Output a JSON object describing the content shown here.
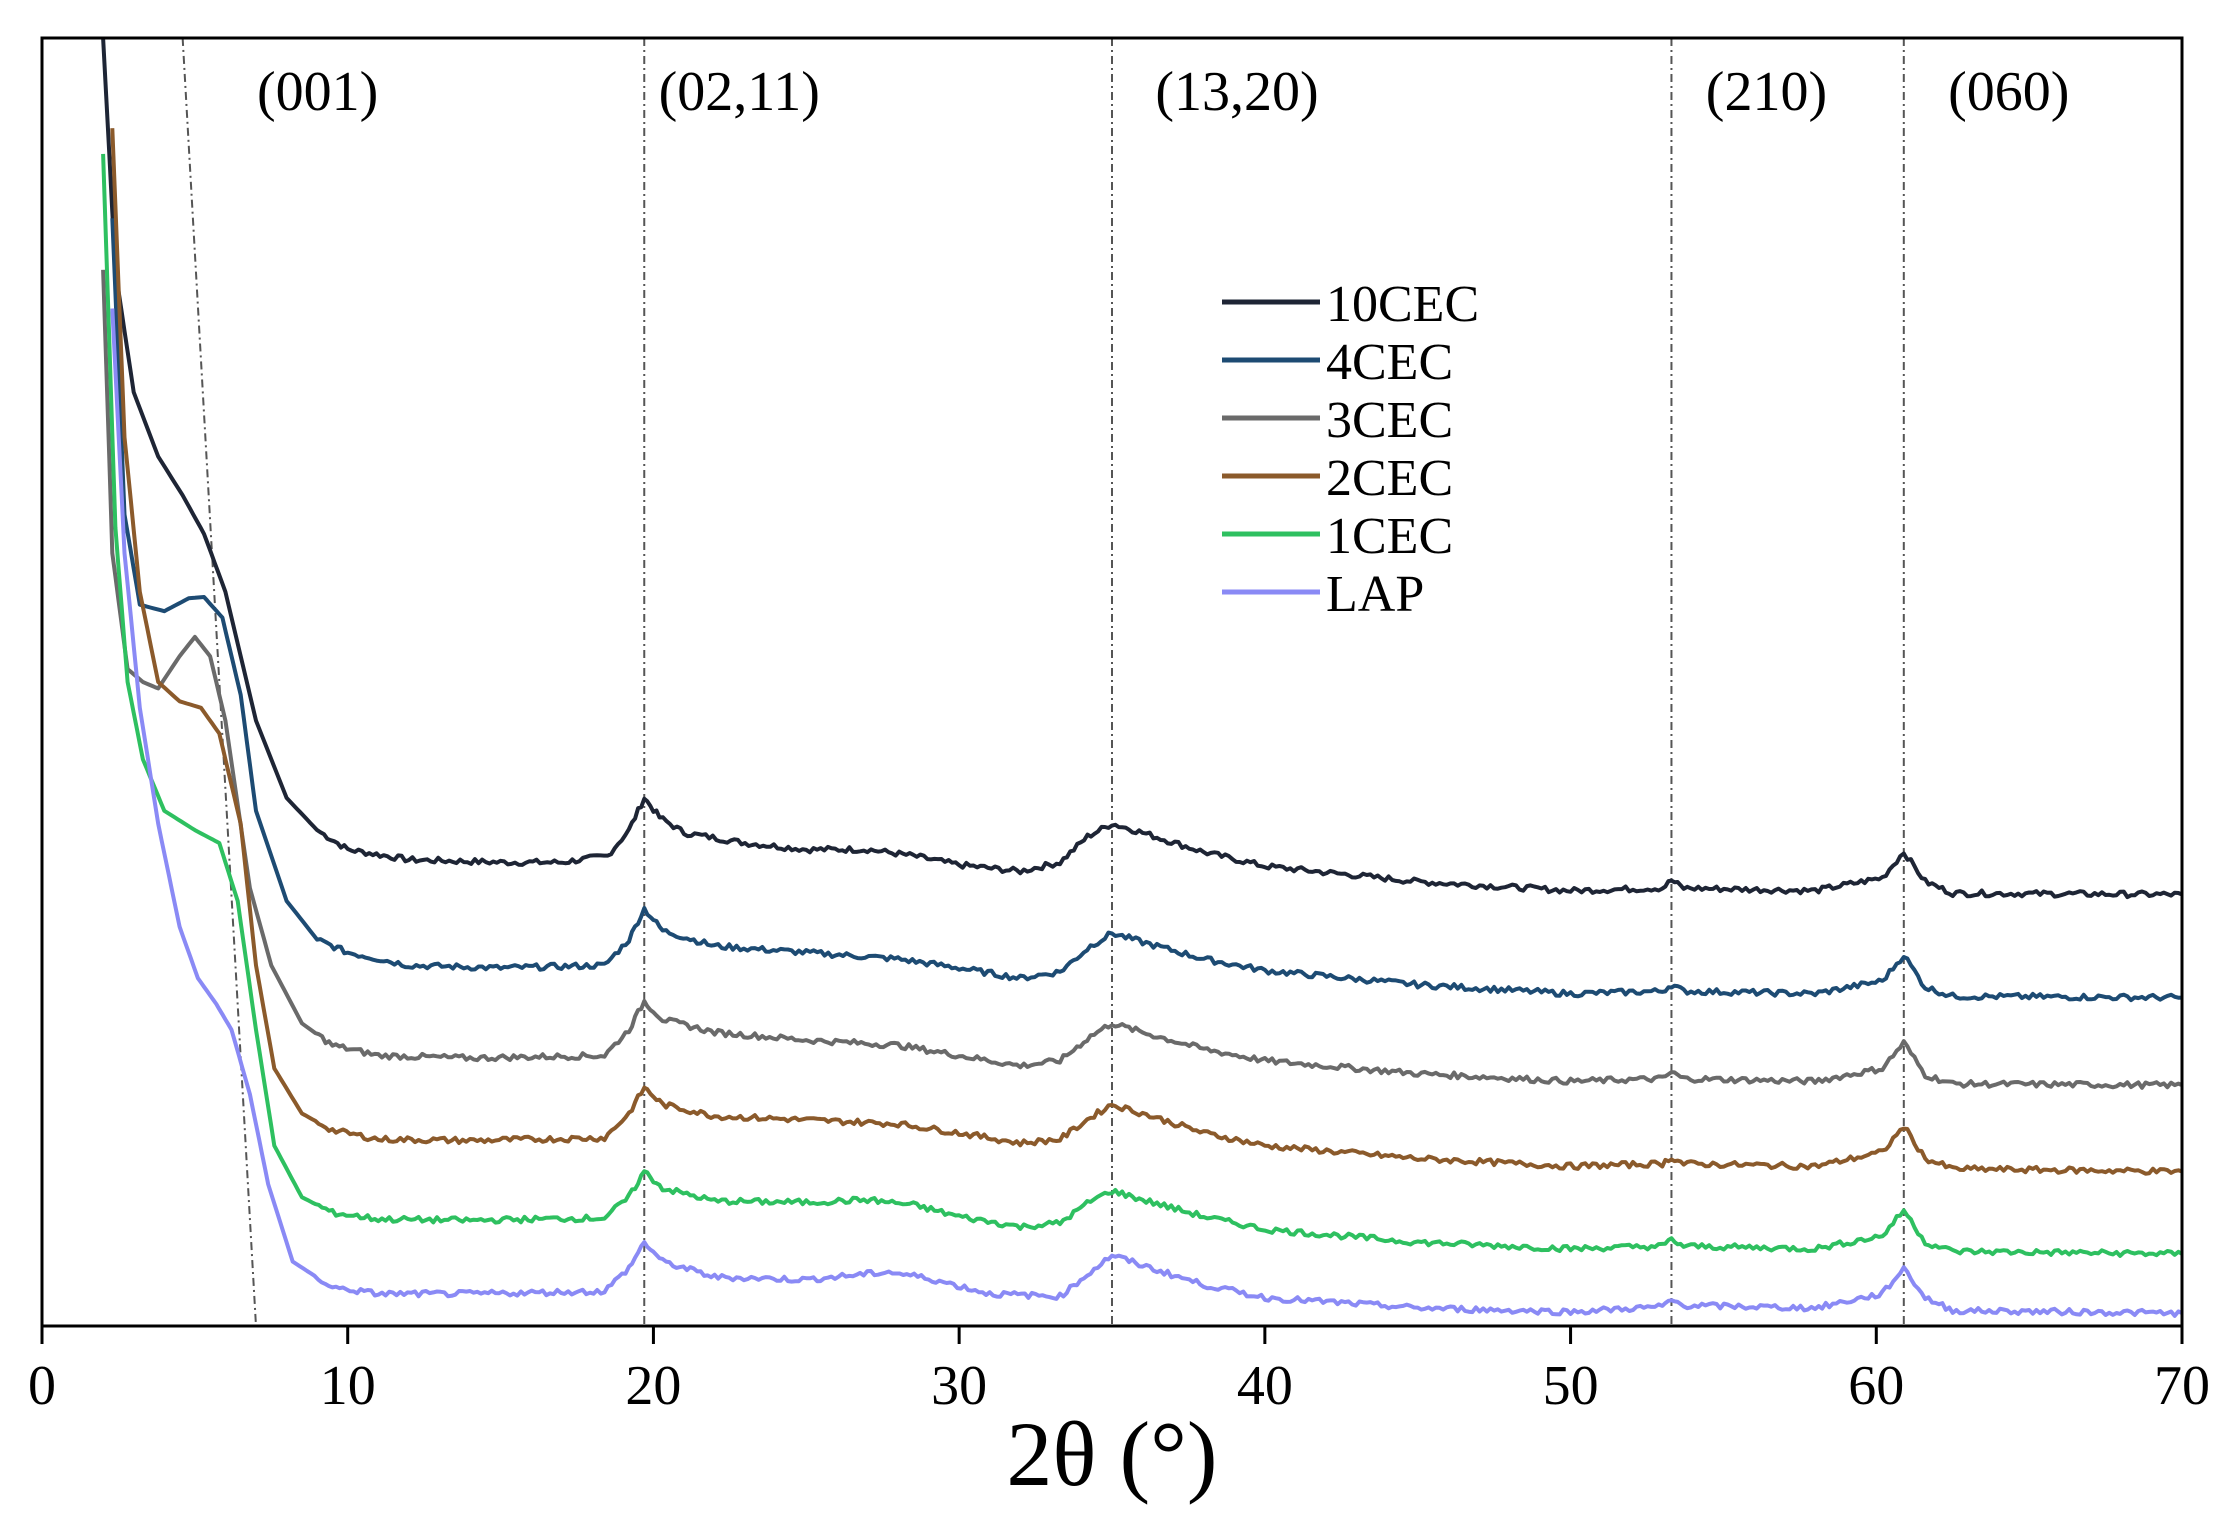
{
  "chart_data": {
    "type": "line",
    "title": "",
    "xlabel": "2θ (°)",
    "ylabel": "",
    "xlim": [
      0,
      70
    ],
    "ylim": [
      0,
      1
    ],
    "yticks_visible": false,
    "xticks": [
      0,
      10,
      20,
      30,
      40,
      50,
      60,
      70
    ],
    "xtick_labels": [
      "0",
      "10",
      "20",
      "30",
      "40",
      "50",
      "60",
      "70"
    ],
    "reflections": [
      {
        "label": "(001)",
        "line": [
          [
            4.6,
            1.0
          ],
          [
            7.0,
            0.0
          ]
        ]
      },
      {
        "label": "(02,11)",
        "line": [
          [
            19.7,
            1.0
          ],
          [
            19.7,
            0.0
          ]
        ]
      },
      {
        "label": "(13,20)",
        "line": [
          [
            35.0,
            1.0
          ],
          [
            35.0,
            0.0
          ]
        ]
      },
      {
        "label": "(210)",
        "line": [
          [
            53.3,
            1.0
          ],
          [
            53.3,
            0.0
          ]
        ]
      },
      {
        "label": "(060)",
        "line": [
          [
            60.9,
            1.0
          ],
          [
            60.9,
            0.0
          ]
        ]
      }
    ],
    "legend": {
      "position": "upper-center"
    },
    "series": [
      {
        "name": "10CEC",
        "color": "#1e2535",
        "points": [
          [
            2.0,
            1.0
          ],
          [
            2.4,
            0.82
          ],
          [
            3,
            0.725
          ],
          [
            3.8,
            0.675
          ],
          [
            4.6,
            0.645
          ],
          [
            5.3,
            0.615
          ],
          [
            6,
            0.57
          ],
          [
            7,
            0.47
          ],
          [
            8,
            0.41
          ],
          [
            9,
            0.385
          ],
          [
            10,
            0.37
          ],
          [
            12,
            0.362
          ],
          [
            15,
            0.36
          ],
          [
            17,
            0.36
          ],
          [
            18.5,
            0.365
          ],
          [
            19.2,
            0.385
          ],
          [
            19.7,
            0.41
          ],
          [
            20.2,
            0.395
          ],
          [
            21,
            0.383
          ],
          [
            23,
            0.375
          ],
          [
            25,
            0.37
          ],
          [
            27,
            0.37
          ],
          [
            28.5,
            0.365
          ],
          [
            30,
            0.358
          ],
          [
            32,
            0.353
          ],
          [
            33.3,
            0.36
          ],
          [
            34.2,
            0.38
          ],
          [
            35,
            0.39
          ],
          [
            36,
            0.383
          ],
          [
            38,
            0.368
          ],
          [
            40,
            0.357
          ],
          [
            45,
            0.345
          ],
          [
            50,
            0.338
          ],
          [
            53,
            0.34
          ],
          [
            53.3,
            0.346
          ],
          [
            53.7,
            0.34
          ],
          [
            58,
            0.338
          ],
          [
            60.2,
            0.348
          ],
          [
            60.9,
            0.368
          ],
          [
            61.6,
            0.345
          ],
          [
            62.5,
            0.336
          ],
          [
            70,
            0.335
          ]
        ]
      },
      {
        "name": "4CEC",
        "color": "#1d4b73",
        "points": [
          [
            2.3,
            0.86
          ],
          [
            2.7,
            0.63
          ],
          [
            3.2,
            0.56
          ],
          [
            4,
            0.555
          ],
          [
            4.8,
            0.565
          ],
          [
            5.3,
            0.566
          ],
          [
            5.9,
            0.55
          ],
          [
            6.5,
            0.49
          ],
          [
            7,
            0.4
          ],
          [
            8,
            0.33
          ],
          [
            9,
            0.3
          ],
          [
            10,
            0.29
          ],
          [
            12,
            0.28
          ],
          [
            15,
            0.278
          ],
          [
            18.4,
            0.28
          ],
          [
            19.2,
            0.3
          ],
          [
            19.7,
            0.324
          ],
          [
            20.3,
            0.307
          ],
          [
            22,
            0.295
          ],
          [
            25,
            0.29
          ],
          [
            28,
            0.285
          ],
          [
            30,
            0.278
          ],
          [
            32,
            0.27
          ],
          [
            33.3,
            0.275
          ],
          [
            34.3,
            0.295
          ],
          [
            35,
            0.305
          ],
          [
            36,
            0.298
          ],
          [
            38,
            0.285
          ],
          [
            40,
            0.276
          ],
          [
            45,
            0.265
          ],
          [
            50,
            0.258
          ],
          [
            53,
            0.26
          ],
          [
            53.3,
            0.265
          ],
          [
            53.7,
            0.26
          ],
          [
            58,
            0.258
          ],
          [
            60.2,
            0.268
          ],
          [
            60.9,
            0.288
          ],
          [
            61.6,
            0.263
          ],
          [
            62.5,
            0.256
          ],
          [
            70,
            0.255
          ]
        ]
      },
      {
        "name": "3CEC",
        "color": "#6a6a6a",
        "points": [
          [
            2.0,
            0.82
          ],
          [
            2.3,
            0.6
          ],
          [
            2.8,
            0.51
          ],
          [
            3.3,
            0.5
          ],
          [
            3.8,
            0.495
          ],
          [
            4.5,
            0.52
          ],
          [
            5.0,
            0.535
          ],
          [
            5.5,
            0.52
          ],
          [
            6,
            0.47
          ],
          [
            6.8,
            0.34
          ],
          [
            7.5,
            0.28
          ],
          [
            8.5,
            0.235
          ],
          [
            9.5,
            0.218
          ],
          [
            11,
            0.21
          ],
          [
            14,
            0.208
          ],
          [
            18.4,
            0.21
          ],
          [
            19.2,
            0.23
          ],
          [
            19.7,
            0.252
          ],
          [
            20.3,
            0.238
          ],
          [
            22,
            0.228
          ],
          [
            25,
            0.222
          ],
          [
            28,
            0.218
          ],
          [
            30,
            0.21
          ],
          [
            32,
            0.202
          ],
          [
            33.3,
            0.206
          ],
          [
            34.3,
            0.225
          ],
          [
            35,
            0.235
          ],
          [
            36,
            0.228
          ],
          [
            38,
            0.215
          ],
          [
            40,
            0.206
          ],
          [
            45,
            0.196
          ],
          [
            50,
            0.19
          ],
          [
            53,
            0.192
          ],
          [
            53.3,
            0.197
          ],
          [
            53.7,
            0.192
          ],
          [
            58,
            0.19
          ],
          [
            60.2,
            0.2
          ],
          [
            60.9,
            0.22
          ],
          [
            61.6,
            0.195
          ],
          [
            62.5,
            0.188
          ],
          [
            70,
            0.187
          ]
        ]
      },
      {
        "name": "2CEC",
        "color": "#8b5a2b",
        "points": [
          [
            2.3,
            0.93
          ],
          [
            2.7,
            0.69
          ],
          [
            3.2,
            0.57
          ],
          [
            3.8,
            0.5
          ],
          [
            4.5,
            0.485
          ],
          [
            5.2,
            0.48
          ],
          [
            5.8,
            0.46
          ],
          [
            6.5,
            0.39
          ],
          [
            7,
            0.28
          ],
          [
            7.6,
            0.2
          ],
          [
            8.5,
            0.165
          ],
          [
            9.5,
            0.152
          ],
          [
            11,
            0.145
          ],
          [
            14,
            0.144
          ],
          [
            18.4,
            0.146
          ],
          [
            19.2,
            0.165
          ],
          [
            19.7,
            0.185
          ],
          [
            20.3,
            0.172
          ],
          [
            22,
            0.163
          ],
          [
            25,
            0.16
          ],
          [
            28,
            0.157
          ],
          [
            30,
            0.15
          ],
          [
            32,
            0.142
          ],
          [
            33.3,
            0.145
          ],
          [
            34.3,
            0.162
          ],
          [
            35,
            0.172
          ],
          [
            36,
            0.165
          ],
          [
            38,
            0.15
          ],
          [
            40,
            0.14
          ],
          [
            45,
            0.13
          ],
          [
            50,
            0.124
          ],
          [
            53,
            0.126
          ],
          [
            53.3,
            0.131
          ],
          [
            53.7,
            0.126
          ],
          [
            58,
            0.124
          ],
          [
            60.2,
            0.135
          ],
          [
            60.9,
            0.155
          ],
          [
            61.6,
            0.13
          ],
          [
            62.5,
            0.122
          ],
          [
            70,
            0.12
          ]
        ]
      },
      {
        "name": "1CEC",
        "color": "#2ec060",
        "points": [
          [
            2.0,
            0.91
          ],
          [
            2.4,
            0.62
          ],
          [
            2.8,
            0.5
          ],
          [
            3.3,
            0.44
          ],
          [
            4,
            0.4
          ],
          [
            5,
            0.385
          ],
          [
            5.8,
            0.375
          ],
          [
            6.4,
            0.33
          ],
          [
            7,
            0.23
          ],
          [
            7.6,
            0.14
          ],
          [
            8.5,
            0.1
          ],
          [
            9.5,
            0.088
          ],
          [
            11,
            0.083
          ],
          [
            14,
            0.082
          ],
          [
            18.4,
            0.084
          ],
          [
            19.2,
            0.1
          ],
          [
            19.7,
            0.12
          ],
          [
            20.3,
            0.107
          ],
          [
            22,
            0.097
          ],
          [
            25,
            0.096
          ],
          [
            27,
            0.098
          ],
          [
            28.5,
            0.094
          ],
          [
            30,
            0.085
          ],
          [
            32,
            0.077
          ],
          [
            33.3,
            0.08
          ],
          [
            34.3,
            0.097
          ],
          [
            35,
            0.105
          ],
          [
            36,
            0.098
          ],
          [
            38,
            0.085
          ],
          [
            40,
            0.075
          ],
          [
            45,
            0.065
          ],
          [
            50,
            0.06
          ],
          [
            53,
            0.062
          ],
          [
            53.3,
            0.067
          ],
          [
            53.7,
            0.062
          ],
          [
            58,
            0.06
          ],
          [
            60.2,
            0.07
          ],
          [
            60.9,
            0.09
          ],
          [
            61.6,
            0.065
          ],
          [
            62.5,
            0.058
          ],
          [
            70,
            0.056
          ]
        ]
      },
      {
        "name": "LAP",
        "color": "#8a8af5",
        "points": [
          [
            2.3,
            0.79
          ],
          [
            2.7,
            0.6
          ],
          [
            3.2,
            0.48
          ],
          [
            3.8,
            0.39
          ],
          [
            4.5,
            0.31
          ],
          [
            5.1,
            0.27
          ],
          [
            5.7,
            0.25
          ],
          [
            6.2,
            0.23
          ],
          [
            6.8,
            0.18
          ],
          [
            7.4,
            0.11
          ],
          [
            8.2,
            0.05
          ],
          [
            9.5,
            0.03
          ],
          [
            11,
            0.025
          ],
          [
            14,
            0.025
          ],
          [
            18.4,
            0.027
          ],
          [
            19.2,
            0.045
          ],
          [
            19.7,
            0.065
          ],
          [
            20.3,
            0.05
          ],
          [
            22,
            0.038
          ],
          [
            25,
            0.036
          ],
          [
            27.7,
            0.042
          ],
          [
            29,
            0.037
          ],
          [
            31,
            0.025
          ],
          [
            33.3,
            0.023
          ],
          [
            34.3,
            0.042
          ],
          [
            35,
            0.055
          ],
          [
            36,
            0.047
          ],
          [
            38,
            0.032
          ],
          [
            40,
            0.022
          ],
          [
            45,
            0.014
          ],
          [
            50,
            0.011
          ],
          [
            53,
            0.015
          ],
          [
            53.3,
            0.02
          ],
          [
            53.7,
            0.016
          ],
          [
            58,
            0.014
          ],
          [
            60.2,
            0.025
          ],
          [
            60.9,
            0.045
          ],
          [
            61.6,
            0.022
          ],
          [
            62.5,
            0.012
          ],
          [
            70,
            0.01
          ]
        ]
      }
    ]
  }
}
